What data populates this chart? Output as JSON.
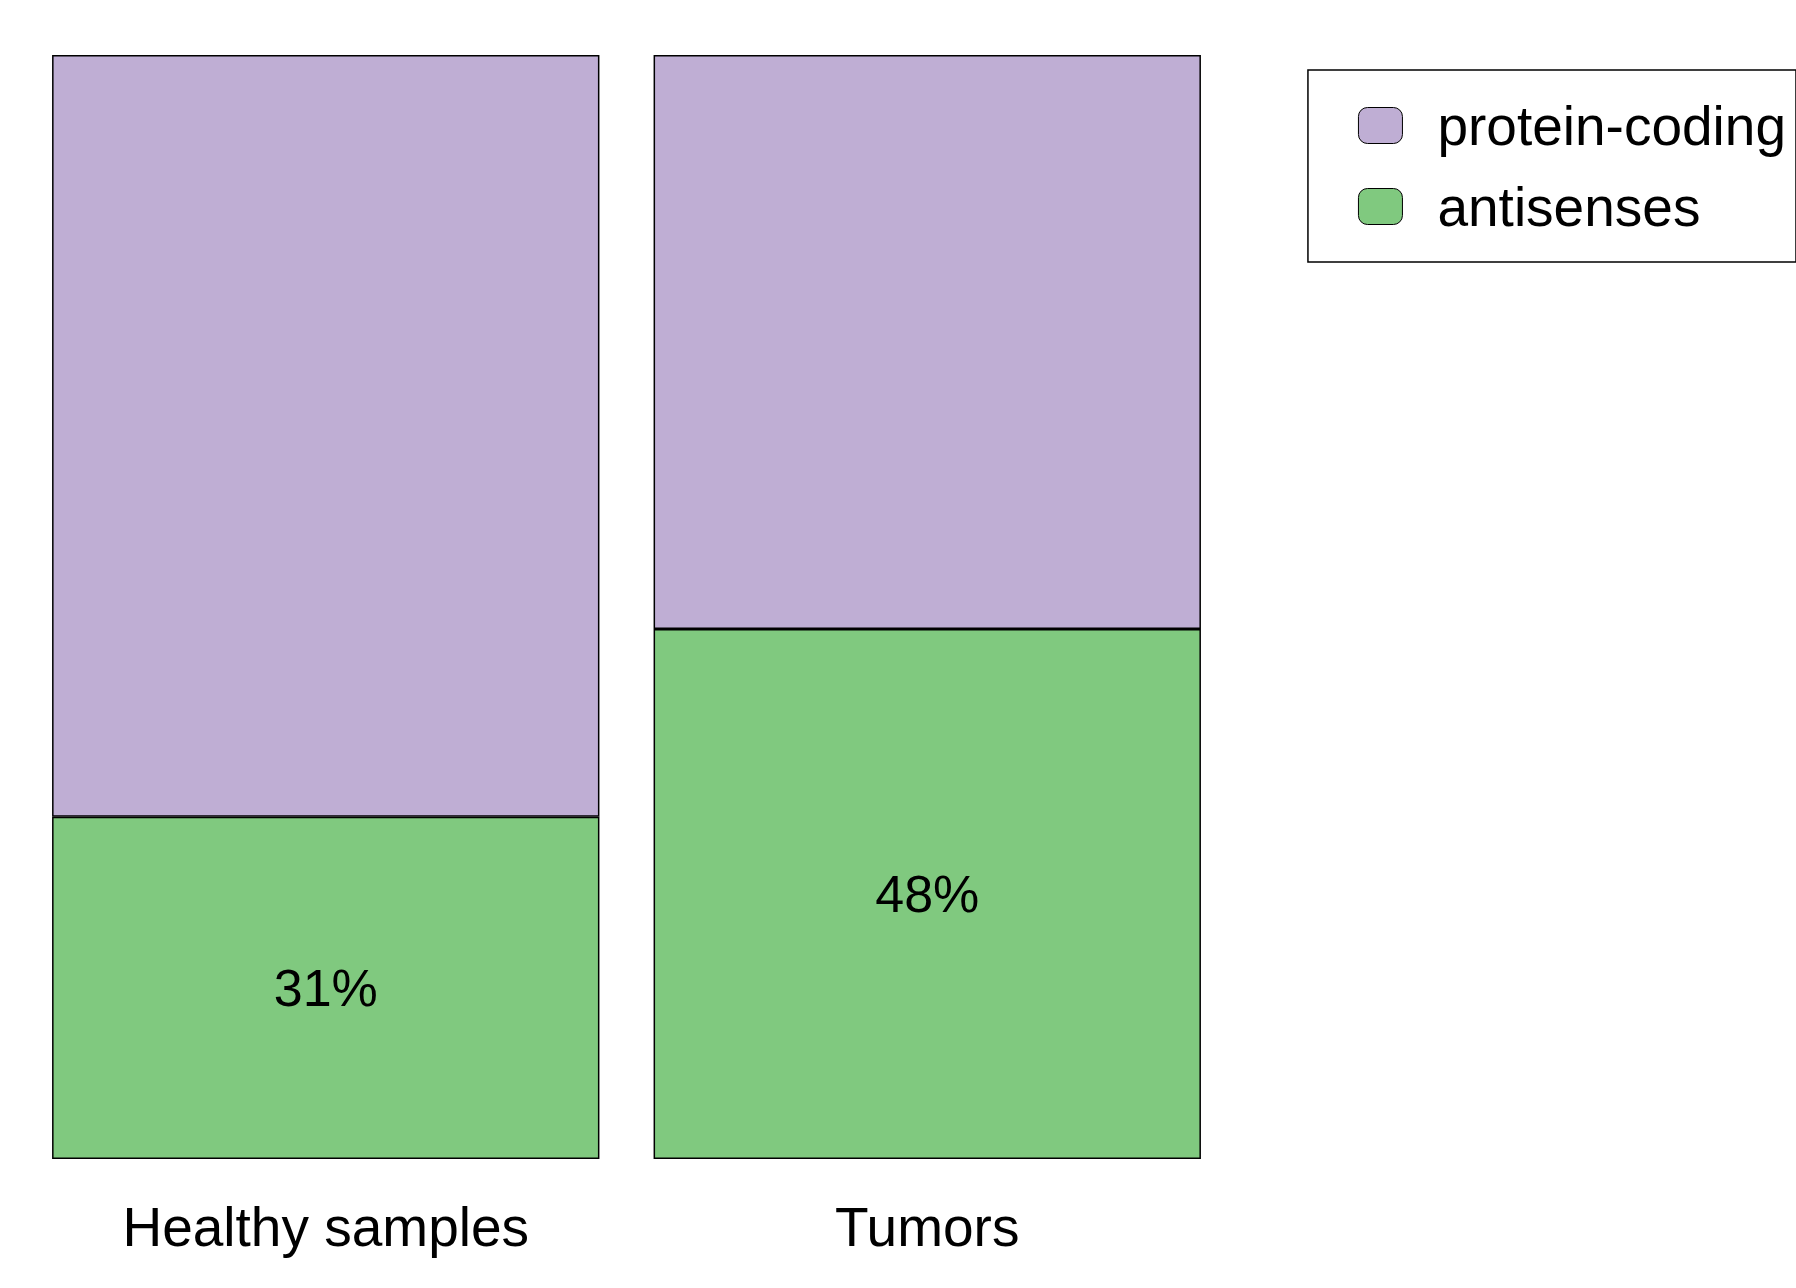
{
  "chart_data": {
    "type": "bar",
    "stacked": true,
    "legend": "top right",
    "categories": [
      "Healthy samples",
      "Tumors"
    ],
    "series": [
      {
        "name": "antisenses",
        "color": "#80c97f",
        "values": [
          31,
          48
        ],
        "value_labels": [
          "31%",
          "48%"
        ]
      },
      {
        "name": "protein-coding",
        "color": "#bfaed4",
        "values": [
          69,
          52
        ]
      }
    ]
  }
}
